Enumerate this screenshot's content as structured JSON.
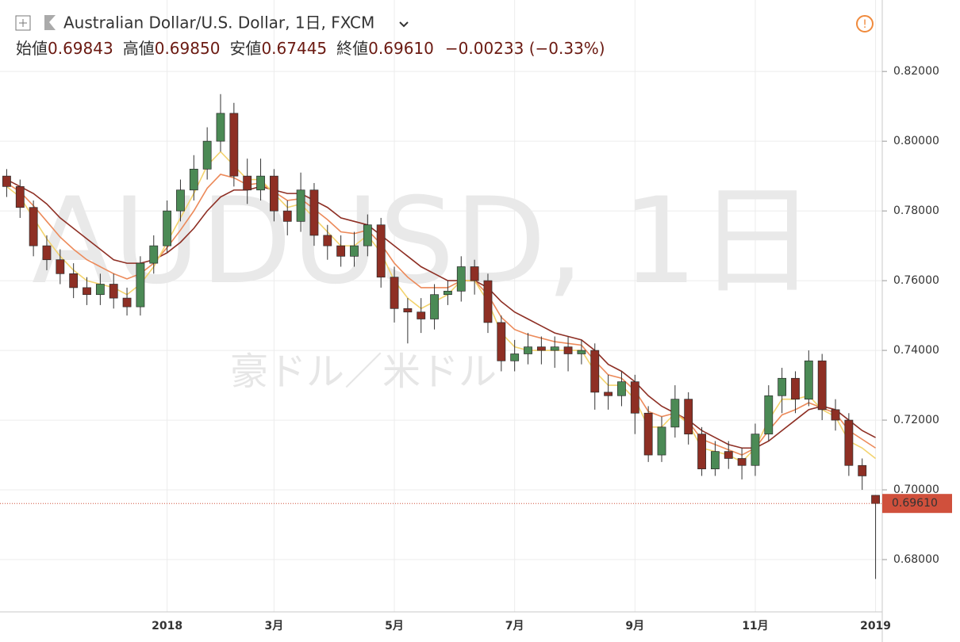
{
  "header": {
    "title": "Australian Dollar/U.S. Dollar, 1日, FXCM",
    "open_label": "始値",
    "open": "0.69843",
    "high_label": "高値",
    "high": "0.69850",
    "low_label": "安値",
    "low": "0.67445",
    "close_label": "終値",
    "close": "0.69610",
    "change": "−0.00233 (−0.33%)"
  },
  "chart_data": {
    "type": "candlestick",
    "watermark": "AUDUSD, 1日",
    "watermark_sub": "豪ドル／米ドル",
    "categories": [
      null,
      null,
      null,
      null,
      null,
      null,
      null,
      null,
      null,
      null,
      null,
      null,
      "2018",
      null,
      null,
      null,
      null,
      null,
      null,
      null,
      "3月",
      null,
      null,
      null,
      null,
      null,
      null,
      null,
      null,
      "5月",
      null,
      null,
      null,
      null,
      null,
      null,
      null,
      null,
      "7月",
      null,
      null,
      null,
      null,
      null,
      null,
      null,
      null,
      "9月",
      null,
      null,
      null,
      null,
      null,
      null,
      null,
      null,
      "11月",
      null,
      null,
      null,
      null,
      null,
      null,
      null,
      null,
      "2019"
    ],
    "open": [
      0.79,
      0.787,
      0.781,
      0.77,
      0.766,
      0.762,
      0.758,
      0.756,
      0.759,
      0.755,
      0.7525,
      0.765,
      0.77,
      0.78,
      0.786,
      0.792,
      0.8,
      0.808,
      0.79,
      0.786,
      0.79,
      0.78,
      0.777,
      0.786,
      0.773,
      0.77,
      0.767,
      0.77,
      0.776,
      0.761,
      0.752,
      0.751,
      0.749,
      0.756,
      0.757,
      0.764,
      0.76,
      0.748,
      0.737,
      0.739,
      0.741,
      0.74,
      0.741,
      0.739,
      0.74,
      0.728,
      0.727,
      0.731,
      0.722,
      0.71,
      0.718,
      0.726,
      0.716,
      0.706,
      0.711,
      0.709,
      0.707,
      0.716,
      0.727,
      0.732,
      0.726,
      0.737,
      0.723,
      0.72,
      0.707,
      0.69843
    ],
    "high": [
      0.792,
      0.789,
      0.783,
      0.773,
      0.769,
      0.765,
      0.761,
      0.762,
      0.762,
      0.758,
      0.767,
      0.773,
      0.783,
      0.789,
      0.796,
      0.804,
      0.8135,
      0.811,
      0.795,
      0.795,
      0.792,
      0.783,
      0.791,
      0.788,
      0.776,
      0.773,
      0.774,
      0.779,
      0.778,
      0.764,
      0.755,
      0.755,
      0.759,
      0.76,
      0.767,
      0.766,
      0.762,
      0.75,
      0.743,
      0.745,
      0.744,
      0.744,
      0.744,
      0.743,
      0.742,
      0.733,
      0.734,
      0.733,
      0.724,
      0.721,
      0.73,
      0.728,
      0.718,
      0.714,
      0.714,
      0.712,
      0.719,
      0.73,
      0.735,
      0.734,
      0.74,
      0.739,
      0.726,
      0.722,
      0.709,
      0.6985
    ],
    "low": [
      0.784,
      0.778,
      0.767,
      0.763,
      0.759,
      0.755,
      0.753,
      0.753,
      0.752,
      0.75,
      0.75,
      0.762,
      0.768,
      0.777,
      0.783,
      0.789,
      0.797,
      0.787,
      0.782,
      0.783,
      0.777,
      0.773,
      0.774,
      0.77,
      0.766,
      0.764,
      0.764,
      0.767,
      0.758,
      0.748,
      0.742,
      0.745,
      0.746,
      0.753,
      0.754,
      0.756,
      0.745,
      0.734,
      0.734,
      0.736,
      0.736,
      0.735,
      0.734,
      0.736,
      0.723,
      0.723,
      0.724,
      0.716,
      0.708,
      0.708,
      0.715,
      0.713,
      0.704,
      0.704,
      0.706,
      0.703,
      0.704,
      0.714,
      0.722,
      0.722,
      0.724,
      0.72,
      0.717,
      0.704,
      0.7,
      0.67445
    ],
    "close": [
      0.787,
      0.781,
      0.77,
      0.766,
      0.762,
      0.758,
      0.756,
      0.759,
      0.755,
      0.7525,
      0.765,
      0.77,
      0.78,
      0.786,
      0.792,
      0.8,
      0.808,
      0.79,
      0.786,
      0.79,
      0.78,
      0.777,
      0.786,
      0.773,
      0.77,
      0.767,
      0.77,
      0.776,
      0.761,
      0.752,
      0.751,
      0.749,
      0.756,
      0.757,
      0.764,
      0.76,
      0.748,
      0.737,
      0.739,
      0.741,
      0.74,
      0.741,
      0.739,
      0.74,
      0.728,
      0.727,
      0.731,
      0.722,
      0.71,
      0.718,
      0.726,
      0.716,
      0.706,
      0.711,
      0.709,
      0.707,
      0.716,
      0.727,
      0.732,
      0.726,
      0.737,
      0.723,
      0.72,
      0.707,
      0.704,
      0.6961
    ],
    "up_color": "#4b8a55",
    "down_color": "#8e2f24",
    "overlays": [
      {
        "color": "#8e2f24",
        "values": [
          0.789,
          0.787,
          0.785,
          0.782,
          0.778,
          0.775,
          0.772,
          0.769,
          0.766,
          0.765,
          0.765,
          0.766,
          0.768,
          0.771,
          0.775,
          0.78,
          0.784,
          0.786,
          0.786,
          0.787,
          0.786,
          0.785,
          0.785,
          0.783,
          0.781,
          0.778,
          0.777,
          0.776,
          0.773,
          0.77,
          0.767,
          0.764,
          0.762,
          0.76,
          0.76,
          0.76,
          0.758,
          0.754,
          0.751,
          0.749,
          0.747,
          0.745,
          0.744,
          0.743,
          0.74,
          0.736,
          0.734,
          0.731,
          0.727,
          0.724,
          0.722,
          0.72,
          0.717,
          0.715,
          0.713,
          0.712,
          0.712,
          0.714,
          0.717,
          0.72,
          0.723,
          0.724,
          0.723,
          0.72,
          0.717,
          0.715
        ]
      },
      {
        "color": "#ec8a5a",
        "values": [
          0.788,
          0.7855,
          0.7815,
          0.777,
          0.7725,
          0.769,
          0.766,
          0.764,
          0.762,
          0.7605,
          0.762,
          0.765,
          0.7695,
          0.7745,
          0.78,
          0.7865,
          0.7905,
          0.7895,
          0.7875,
          0.788,
          0.7855,
          0.783,
          0.7835,
          0.7805,
          0.7775,
          0.774,
          0.7735,
          0.7745,
          0.7705,
          0.765,
          0.761,
          0.758,
          0.758,
          0.758,
          0.76,
          0.76,
          0.756,
          0.7495,
          0.746,
          0.7445,
          0.7435,
          0.7425,
          0.742,
          0.7415,
          0.737,
          0.733,
          0.732,
          0.7285,
          0.7225,
          0.721,
          0.722,
          0.7195,
          0.7145,
          0.713,
          0.7115,
          0.71,
          0.712,
          0.717,
          0.7215,
          0.723,
          0.725,
          0.7235,
          0.722,
          0.717,
          0.7145,
          0.712
        ]
      },
      {
        "color": "#f3d36e",
        "values": [
          0.787,
          0.784,
          0.778,
          0.772,
          0.767,
          0.763,
          0.76,
          0.759,
          0.758,
          0.756,
          0.759,
          0.764,
          0.771,
          0.778,
          0.785,
          0.793,
          0.797,
          0.793,
          0.789,
          0.789,
          0.785,
          0.781,
          0.782,
          0.778,
          0.774,
          0.77,
          0.77,
          0.773,
          0.768,
          0.76,
          0.755,
          0.752,
          0.754,
          0.756,
          0.76,
          0.76,
          0.754,
          0.745,
          0.741,
          0.74,
          0.74,
          0.74,
          0.74,
          0.74,
          0.734,
          0.73,
          0.73,
          0.726,
          0.718,
          0.718,
          0.722,
          0.719,
          0.712,
          0.711,
          0.71,
          0.708,
          0.712,
          0.72,
          0.726,
          0.726,
          0.727,
          0.723,
          0.721,
          0.714,
          0.712,
          0.709
        ]
      }
    ],
    "ylim": [
      0.665,
      0.8405
    ],
    "yticks": [
      {
        "value": 0.68,
        "label": "0.68000"
      },
      {
        "value": 0.7,
        "label": "0.70000"
      },
      {
        "value": 0.72,
        "label": "0.72000"
      },
      {
        "value": 0.74,
        "label": "0.74000"
      },
      {
        "value": 0.76,
        "label": "0.76000"
      },
      {
        "value": 0.78,
        "label": "0.78000"
      },
      {
        "value": 0.8,
        "label": "0.80000"
      },
      {
        "value": 0.82,
        "label": "0.82000"
      }
    ],
    "last_price": {
      "value": 0.6961,
      "label": "0.69610"
    },
    "last_color": "#d0503c",
    "grid": true
  }
}
